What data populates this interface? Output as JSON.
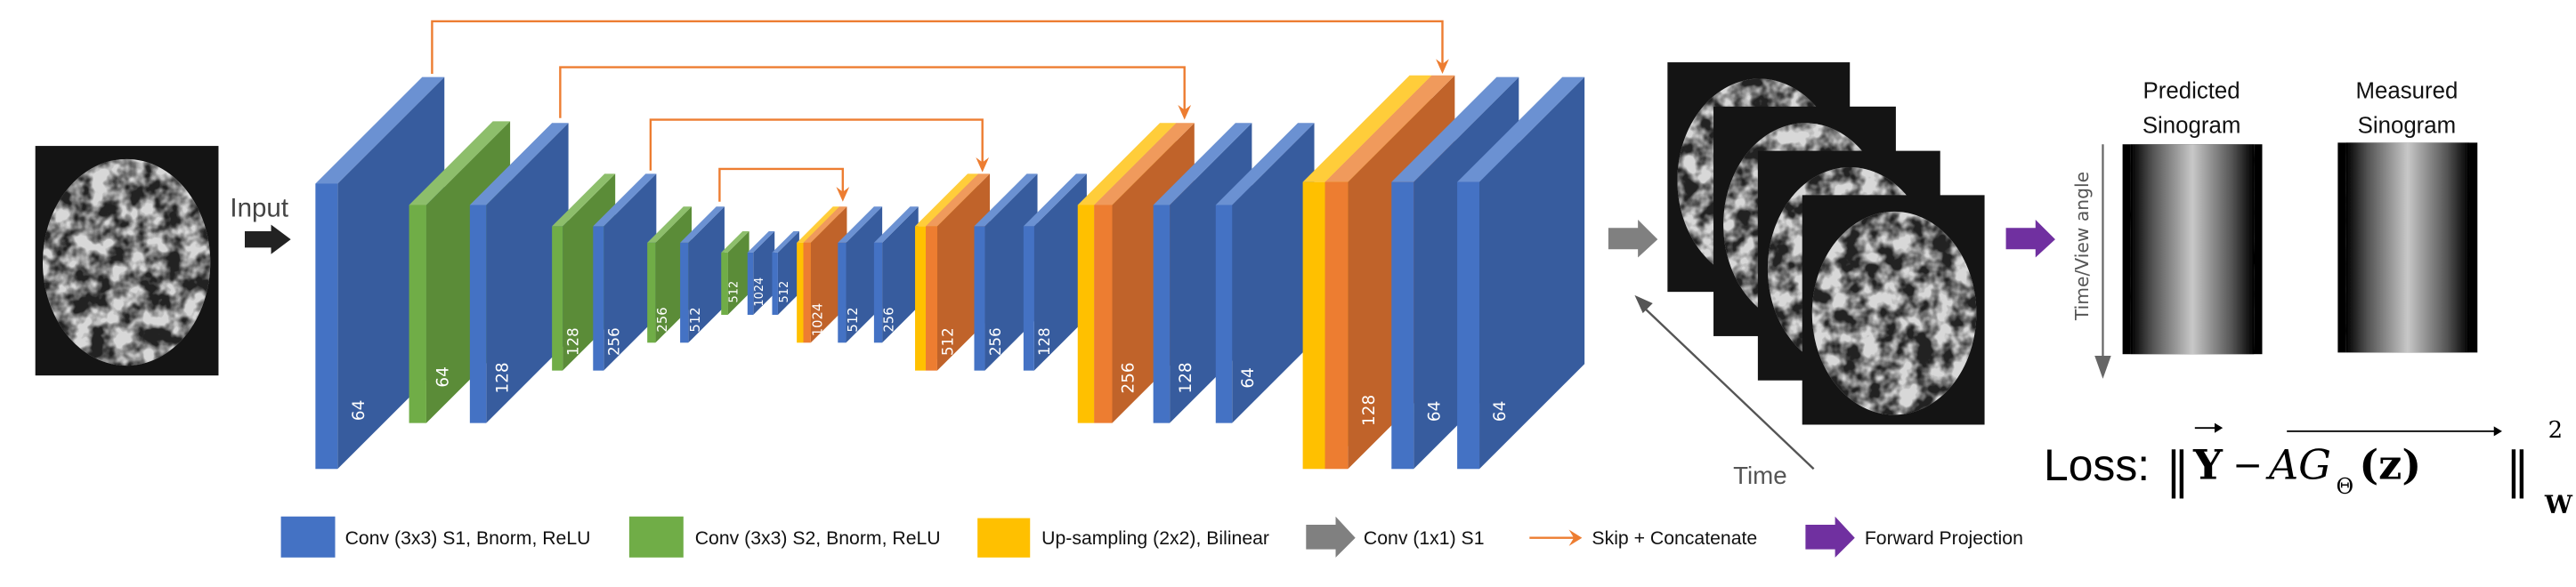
{
  "input_label": "Input",
  "colors": {
    "conv_s1": "#4472C4",
    "conv_s2": "#70AD47",
    "upsample": "#FFC000",
    "concat": "#ED7D31",
    "conv_1x1": "#7F7F7F",
    "skip": "#ED7D31",
    "forward_projection": "#7030A0"
  },
  "layers": [
    {
      "type": "conv_s1",
      "label": "64"
    },
    {
      "type": "conv_s2",
      "label": "64"
    },
    {
      "type": "conv_s1",
      "label": "128"
    },
    {
      "type": "conv_s2",
      "label": "128"
    },
    {
      "type": "conv_s1",
      "label": "256"
    },
    {
      "type": "conv_s2",
      "label": "256"
    },
    {
      "type": "conv_s1",
      "label": "512"
    },
    {
      "type": "conv_s2",
      "label": "512"
    },
    {
      "type": "conv_s1",
      "label": "1024"
    },
    {
      "type": "conv_s1",
      "label": "512"
    },
    {
      "type": "upsample_concat",
      "label": "1024"
    },
    {
      "type": "conv_s1",
      "label": "512"
    },
    {
      "type": "conv_s1",
      "label": "256"
    },
    {
      "type": "upsample_concat",
      "label": "512"
    },
    {
      "type": "conv_s1",
      "label": "256"
    },
    {
      "type": "conv_s1",
      "label": "128"
    },
    {
      "type": "upsample_concat",
      "label": "256"
    },
    {
      "type": "conv_s1",
      "label": "128"
    },
    {
      "type": "conv_s1",
      "label": "64"
    },
    {
      "type": "upsample_concat",
      "label": "128"
    },
    {
      "type": "conv_s1",
      "label": "64"
    },
    {
      "type": "conv_s1",
      "label": "64"
    }
  ],
  "time_label": "Time",
  "axis_label": "Time/View angle",
  "sinograms": {
    "predicted": {
      "line1": "Predicted",
      "line2": "Sinogram"
    },
    "measured": {
      "line1": "Measured",
      "line2": "Sinogram"
    }
  },
  "loss": {
    "label": "Loss:",
    "norm": "‖",
    "y": "Y",
    "minus": "−",
    "operator": "AG",
    "subscript": "Θ",
    "argument": "(z)",
    "power": "2",
    "weight": "W"
  },
  "legend": [
    {
      "icon": "blue-square",
      "label": "Conv (3x3) S1, Bnorm, ReLU"
    },
    {
      "icon": "green-square",
      "label": "Conv (3x3) S2, Bnorm, ReLU"
    },
    {
      "icon": "yellow-square",
      "label": "Up-sampling (2x2), Bilinear"
    },
    {
      "icon": "gray-arrow",
      "label": "Conv (1x1) S1"
    },
    {
      "icon": "orange-thin-arrow",
      "label": "Skip + Concatenate"
    },
    {
      "icon": "purple-arrow",
      "label": "Forward Projection"
    }
  ]
}
